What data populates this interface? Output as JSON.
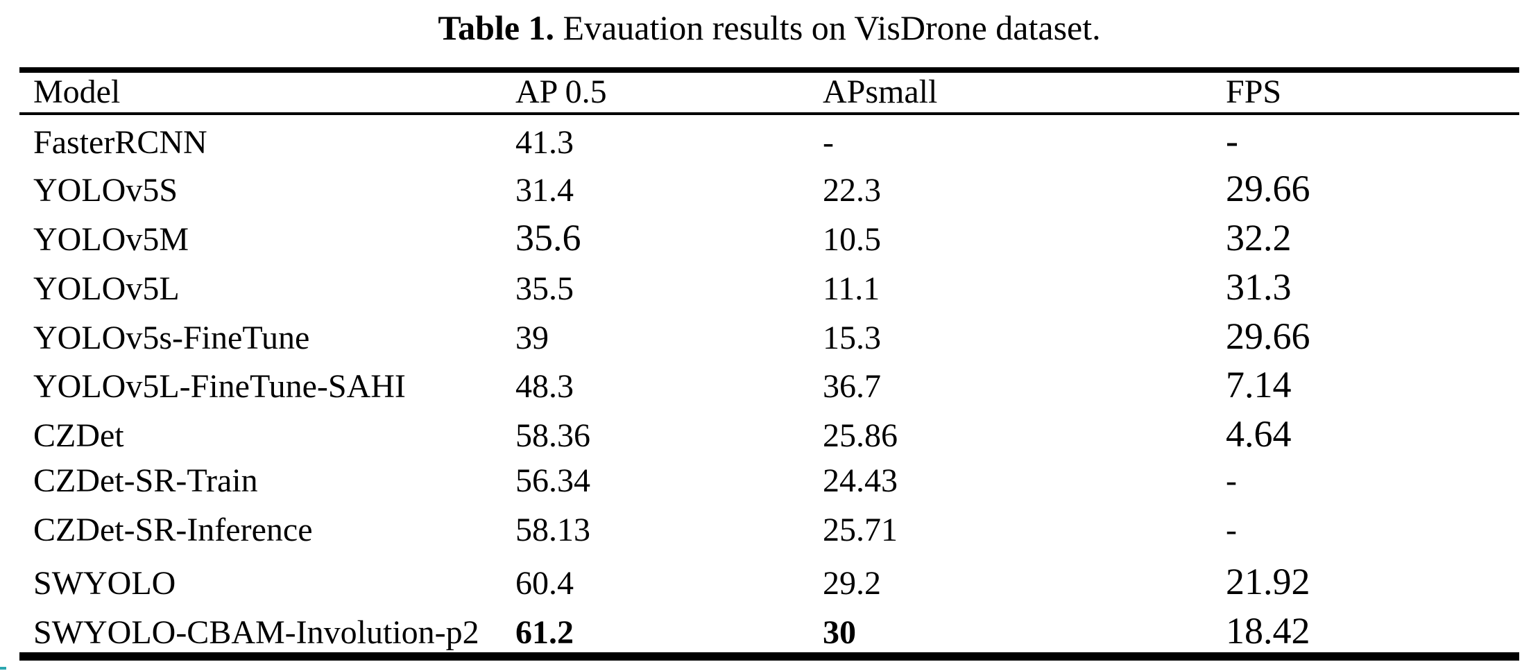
{
  "title": {
    "bold_part": "Table 1.",
    "text_part": " Evauation results on VisDrone dataset."
  },
  "table": {
    "columns": [
      {
        "label": "Model"
      },
      {
        "label": "AP 0.5"
      },
      {
        "label": "APsmall"
      },
      {
        "label": "FPS"
      }
    ],
    "rows": [
      {
        "cells": [
          {
            "t": "FasterRCNN"
          },
          {
            "t": "41.3"
          },
          {
            "t": "-"
          },
          {
            "t": "-",
            "large": true
          }
        ]
      },
      {
        "cells": [
          {
            "t": "YOLOv5S"
          },
          {
            "t": "31.4"
          },
          {
            "t": "22.3"
          },
          {
            "t": "29.66",
            "large": true
          }
        ]
      },
      {
        "cells": [
          {
            "t": "YOLOv5M"
          },
          {
            "t": "35.6",
            "large": true
          },
          {
            "t": "10.5"
          },
          {
            "t": "32.2",
            "large": true
          }
        ]
      },
      {
        "cells": [
          {
            "t": "YOLOv5L"
          },
          {
            "t": "35.5"
          },
          {
            "t": "11.1"
          },
          {
            "t": "31.3",
            "large": true
          }
        ]
      },
      {
        "cells": [
          {
            "t": "YOLOv5s-FineTune"
          },
          {
            "t": "39"
          },
          {
            "t": "15.3"
          },
          {
            "t": "29.66",
            "large": true
          }
        ]
      },
      {
        "cells": [
          {
            "t": "YOLOv5L-FineTune-SAHI"
          },
          {
            "t": "48.3"
          },
          {
            "t": "36.7"
          },
          {
            "t": "7.14",
            "large": true
          }
        ]
      },
      {
        "cells": [
          {
            "t": "CZDet"
          },
          {
            "t": "58.36"
          },
          {
            "t": "25.86"
          },
          {
            "t": "4.64",
            "large": true
          }
        ]
      },
      {
        "cells": [
          {
            "t": "CZDet-SR-Train"
          },
          {
            "t": "56.34"
          },
          {
            "t": "24.43"
          },
          {
            "t": "-"
          }
        ]
      },
      {
        "cells": [
          {
            "t": "CZDet-SR-Inference"
          },
          {
            "t": "58.13"
          },
          {
            "t": "25.71"
          },
          {
            "t": "-"
          }
        ]
      },
      {
        "cells": [
          {
            "t": "SWYOLO"
          },
          {
            "t": "60.4"
          },
          {
            "t": "29.2"
          },
          {
            "t": "21.92",
            "large": true
          }
        ]
      },
      {
        "cells": [
          {
            "t": "SWYOLO-CBAM-Involution-p2"
          },
          {
            "t": "61.2",
            "bold": true
          },
          {
            "t": "30",
            "bold": true
          },
          {
            "t": "18.42",
            "large": true
          }
        ]
      }
    ]
  },
  "colors": {
    "text": "#000000",
    "background": "#ffffff",
    "rule": "#000000"
  }
}
